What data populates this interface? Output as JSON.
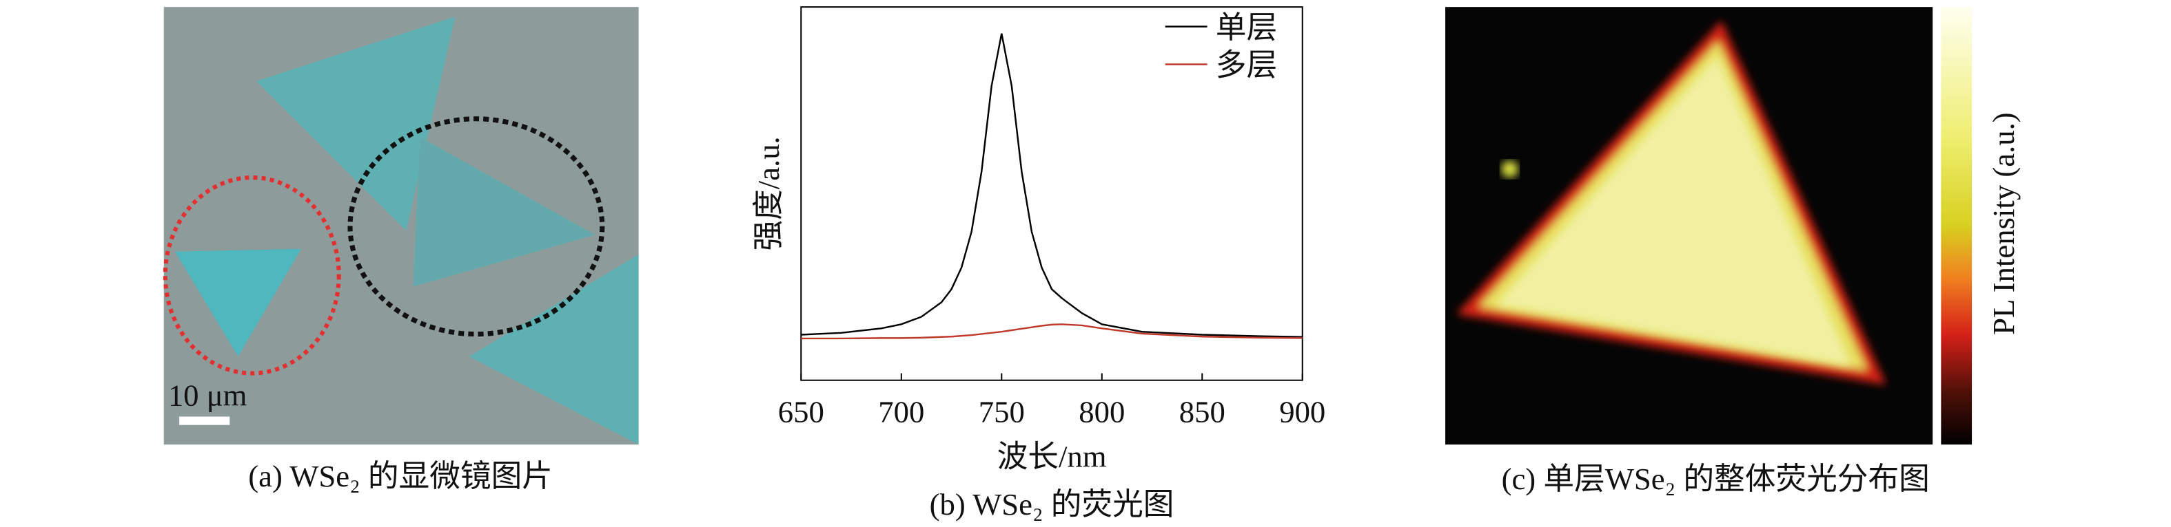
{
  "panel_a": {
    "scale_bar": "10 μm",
    "caption": "(a) WSe₂ 的显微镜图片"
  },
  "chart_data": {
    "type": "line",
    "caption": "(b) WSe₂ 的荧光图",
    "xlabel": "波长/nm",
    "ylabel": "强度/a.u.",
    "x": [
      650,
      670,
      690,
      700,
      710,
      720,
      725,
      730,
      735,
      740,
      745,
      750,
      755,
      760,
      765,
      770,
      775,
      780,
      790,
      800,
      820,
      850,
      880,
      900
    ],
    "series": [
      {
        "name": "单层",
        "color": "#000000",
        "values": [
          12.2,
          12.7,
          13.9,
          15.0,
          17.0,
          20.9,
          24.4,
          30.2,
          39.8,
          55.9,
          78.9,
          92.9,
          78.9,
          55.9,
          39.8,
          30.2,
          24.4,
          22.0,
          18.0,
          15.0,
          13.0,
          12.2,
          11.8,
          11.6
        ]
      },
      {
        "name": "多层",
        "color": "#c0392b",
        "values": [
          11.2,
          11.2,
          11.3,
          11.3,
          11.4,
          11.6,
          11.7,
          11.9,
          12.1,
          12.4,
          12.7,
          13.0,
          13.4,
          13.8,
          14.2,
          14.6,
          14.9,
          15.0,
          14.7,
          13.9,
          12.5,
          11.7,
          11.4,
          11.3
        ]
      }
    ],
    "xlim": [
      650,
      900
    ],
    "xticks": [
      650,
      700,
      750,
      800,
      850,
      900
    ],
    "ylim": [
      0,
      100
    ],
    "legend": "upper right"
  },
  "panel_c": {
    "colorbar_label": "PL Intensity (a.u.)",
    "caption": "(c) 单层WSe₂ 的整体荧光分布图"
  }
}
